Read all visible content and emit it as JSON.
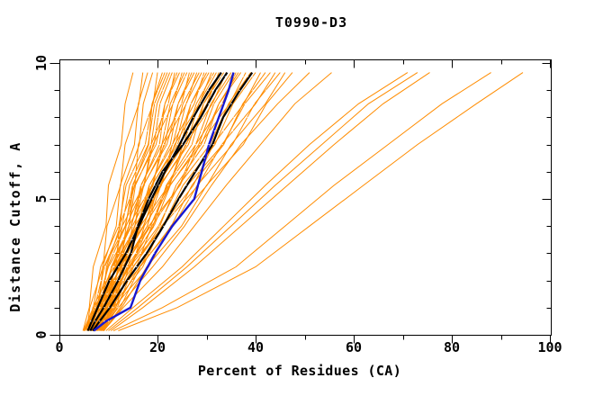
{
  "title": "T0990-D3",
  "chart_data": {
    "type": "line",
    "title": "T0990-D3",
    "xlabel": "Percent of Residues (CA)",
    "ylabel": "Distance Cutoff, A",
    "xlim": [
      0,
      100
    ],
    "ylim": [
      0,
      10
    ],
    "x_major_ticks": [
      0,
      20,
      40,
      60,
      80,
      100
    ],
    "x_minor_ticks": [
      10,
      30,
      50,
      70,
      90
    ],
    "y_major_ticks": [
      0,
      5,
      10
    ],
    "y_minor_ticks": [
      1,
      2,
      3,
      4,
      6,
      7,
      8,
      9
    ],
    "grid": false,
    "legend_position": "none",
    "colors": {
      "models": "#ff8c00",
      "highlight": "#000000",
      "reference": "#1717d0",
      "axis": "#000000",
      "background": "#ffffff",
      "texture": "#ffffff"
    },
    "texture_step": 0.5,
    "y_nodes_main": [
      0.15,
      0.5,
      1,
      2,
      3,
      4,
      5,
      6,
      7,
      8,
      9,
      9.65
    ],
    "y_nodes_bundle": [
      0.15,
      1,
      2.5,
      4,
      5.5,
      7,
      8.5,
      9.65
    ],
    "series": {
      "orange_bundle": [
        [
          4.8,
          6.1,
          6.9,
          9.5,
          10.0,
          12.6,
          13.4,
          15.0
        ],
        [
          5.6,
          6.2,
          8.9,
          9.7,
          12.5,
          13.4,
          16.2,
          17.0
        ],
        [
          6.4,
          8.0,
          8.8,
          11.6,
          12.4,
          15.3,
          16.1,
          18.0
        ],
        [
          7.2,
          8.7,
          9.6,
          12.4,
          13.2,
          16.3,
          17.1,
          19.0
        ],
        [
          8.0,
          8.5,
          11.6,
          12.2,
          15.4,
          16.1,
          19.1,
          20.0
        ],
        [
          8.7,
          10.3,
          11.1,
          14.2,
          15.0,
          18.2,
          18.9,
          21.0
        ],
        [
          4.9,
          6.9,
          8.4,
          12.1,
          13.6,
          17.5,
          18.9,
          21.5
        ],
        [
          5.7,
          7.7,
          9.1,
          12.8,
          14.3,
          18.1,
          19.4,
          22.0
        ],
        [
          6.5,
          8.4,
          9.8,
          13.5,
          14.9,
          18.7,
          19.9,
          22.5
        ],
        [
          7.3,
          9.2,
          10.6,
          14.2,
          15.5,
          19.3,
          20.5,
          23.0
        ],
        [
          8.1,
          8.8,
          12.5,
          13.6,
          17.3,
          18.7,
          22.2,
          23.5
        ],
        [
          8.7,
          10.6,
          11.9,
          15.4,
          16.7,
          20.4,
          21.5,
          24.0
        ],
        [
          5.0,
          7.2,
          9.2,
          13.4,
          15.3,
          19.7,
          21.5,
          24.5
        ],
        [
          5.8,
          6.8,
          11.1,
          12.8,
          17.2,
          19.1,
          23.2,
          25.0
        ],
        [
          6.6,
          8.7,
          10.6,
          14.7,
          16.6,
          20.9,
          22.6,
          25.5
        ],
        [
          7.4,
          9.5,
          11.3,
          15.4,
          17.2,
          21.5,
          23.1,
          26.0
        ],
        [
          8.2,
          9.1,
          13.3,
          14.9,
          19.1,
          20.9,
          24.9,
          26.5
        ],
        [
          8.8,
          10.9,
          12.6,
          16.6,
          18.4,
          22.6,
          24.2,
          27.0
        ],
        [
          5.1,
          7.5,
          10.0,
          14.6,
          17.1,
          21.9,
          24.2,
          27.5
        ],
        [
          5.9,
          7.1,
          11.9,
          14.1,
          18.9,
          21.3,
          25.9,
          28.0
        ],
        [
          6.6,
          9.0,
          11.4,
          15.9,
          18.3,
          23.1,
          25.2,
          28.5
        ],
        [
          7.4,
          9.8,
          12.1,
          16.6,
          18.9,
          23.7,
          25.8,
          29.0
        ],
        [
          8.2,
          9.4,
          14.0,
          16.1,
          20.8,
          23.0,
          27.5,
          29.5
        ],
        [
          8.8,
          11.2,
          13.4,
          17.9,
          20.1,
          24.8,
          26.8,
          30.0
        ],
        [
          5.1,
          7.8,
          10.7,
          15.8,
          18.8,
          24.1,
          26.8,
          30.5
        ],
        [
          5.9,
          7.4,
          12.7,
          15.3,
          20.6,
          23.5,
          28.5,
          31.0
        ],
        [
          6.7,
          9.3,
          12.2,
          17.2,
          20.0,
          25.3,
          27.9,
          31.5
        ],
        [
          7.5,
          10.1,
          12.9,
          17.9,
          20.7,
          25.9,
          28.4,
          32.0
        ],
        [
          8.3,
          9.7,
          14.8,
          17.3,
          22.5,
          25.2,
          30.1,
          32.5
        ],
        [
          8.9,
          11.5,
          14.2,
          19.1,
          21.8,
          27.0,
          29.4,
          33.0
        ],
        [
          5.2,
          8.1,
          11.5,
          17.1,
          20.5,
          26.3,
          29.4,
          33.5
        ],
        [
          6.0,
          7.7,
          13.4,
          16.5,
          22.3,
          25.7,
          31.2,
          34.0
        ],
        [
          6.8,
          9.7,
          13.1,
          18.6,
          22.0,
          27.8,
          30.9,
          35.0
        ],
        [
          7.6,
          10.5,
          13.8,
          19.3,
          22.6,
          28.4,
          31.5,
          35.5
        ],
        [
          8.4,
          10.0,
          15.7,
          18.8,
          24.5,
          27.8,
          33.2,
          36.0
        ],
        [
          9.0,
          11.8,
          15.1,
          20.5,
          23.8,
          29.5,
          32.5,
          36.5
        ],
        [
          5.2,
          8.4,
          12.4,
          18.5,
          22.5,
          28.9,
          32.5,
          37.0
        ],
        [
          6.1,
          8.1,
          14.5,
          18.2,
          24.6,
          28.6,
          34.7,
          38.0
        ],
        [
          6.9,
          10.1,
          14.1,
          20.2,
          24.3,
          30.7,
          34.5,
          39.0
        ],
        [
          7.7,
          10.9,
          15.0,
          21.1,
          25.2,
          31.7,
          35.4,
          40.0
        ],
        [
          8.5,
          10.5,
          17.0,
          20.8,
          27.3,
          31.4,
          37.6,
          41.0
        ],
        [
          9.1,
          12.4,
          16.5,
          22.8,
          27.0,
          33.5,
          37.4,
          42.0
        ],
        [
          5.8,
          9.4,
          14.3,
          21.2,
          26.1,
          33.3,
          37.8,
          43.0
        ],
        [
          6.8,
          9.2,
          16.5,
          21.0,
          28.3,
          33.1,
          40.0,
          44.0
        ],
        [
          7.8,
          11.4,
          16.3,
          23.2,
          28.1,
          35.3,
          39.8,
          45.0
        ],
        [
          8.4,
          11.0,
          18.2,
          22.7,
          30.1,
          35.0,
          42.0,
          46.0
        ],
        [
          9.0,
          12.7,
          17.8,
          24.9,
          30.0,
          37.5,
          42.2,
          47.5
        ]
      ],
      "orange_outliers": [
        [
          8.5,
          12.0,
          19.0,
          25.5,
          31.0,
          37.0,
          44.5,
          51.0
        ],
        [
          9.0,
          13.0,
          21.0,
          27.5,
          34.0,
          41.0,
          48.0,
          55.5
        ],
        [
          9.5,
          15.0,
          25.0,
          33.5,
          42.0,
          51.0,
          61.0,
          71.0
        ],
        [
          10.0,
          16.0,
          26.0,
          35.0,
          44.0,
          53.5,
          63.0,
          73.0
        ],
        [
          10.5,
          17.0,
          27.5,
          37.0,
          46.5,
          56.0,
          66.0,
          75.5
        ],
        [
          11.0,
          21.0,
          36.0,
          46.0,
          56.0,
          67.0,
          78.0,
          88.0
        ],
        [
          12.0,
          24.0,
          40.0,
          51.0,
          62.0,
          73.0,
          85.0,
          94.5
        ]
      ],
      "black_highlight": [
        [
          5.8,
          6.6,
          7.8,
          10.2,
          13.6,
          16.2,
          18.8,
          21.5,
          24.5,
          27.3,
          30.5,
          33.0
        ],
        [
          6.3,
          7.3,
          9.0,
          12.0,
          14.6,
          16.0,
          18.2,
          21.0,
          25.2,
          28.8,
          31.8,
          34.2
        ],
        [
          6.8,
          8.2,
          10.3,
          13.8,
          17.8,
          21.2,
          24.3,
          27.7,
          31.2,
          33.4,
          36.8,
          39.3
        ]
      ],
      "blue_reference": [
        [
          7.0,
          9.5,
          14.5,
          16.5,
          19.5,
          23.0,
          27.5,
          29.0,
          30.5,
          32.5,
          34.5,
          35.5
        ]
      ]
    }
  }
}
